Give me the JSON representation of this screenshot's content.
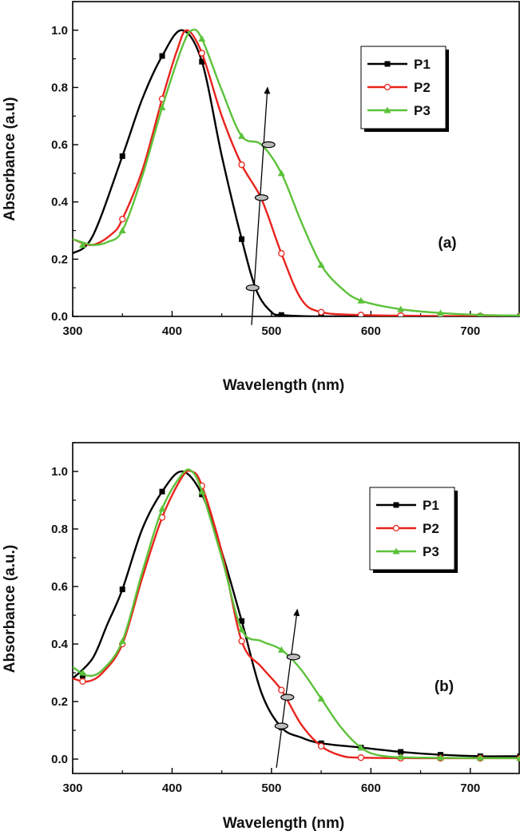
{
  "colors": {
    "P1": "#000000",
    "P2": "#e8231c",
    "P3": "#5cc23a"
  },
  "chart_data": [
    {
      "type": "line",
      "panel_label": "(a)",
      "xlabel": "Wavelength (nm)",
      "ylabel": "Absorbance (a.u)",
      "xlim": [
        300,
        750
      ],
      "ylim": [
        0,
        1.1
      ],
      "xticks": [
        300,
        400,
        500,
        600,
        700
      ],
      "yticks": [
        0.0,
        0.2,
        0.4,
        0.6,
        0.8,
        1.0
      ],
      "ytick_labels": [
        "0.0",
        "0.2",
        "0.4",
        "0.6",
        "0.8",
        "1.0"
      ],
      "legend": {
        "position": "top-right"
      },
      "series": [
        {
          "name": "P1",
          "marker": "square",
          "x": [
            300,
            320,
            350,
            370,
            390,
            410,
            430,
            450,
            470,
            485,
            500,
            510,
            530,
            550,
            600,
            650,
            700,
            750
          ],
          "y": [
            0.22,
            0.28,
            0.56,
            0.76,
            0.91,
            1.0,
            0.89,
            0.56,
            0.27,
            0.09,
            0.015,
            0.005,
            0.001,
            0.0,
            0.0,
            0.0,
            0.0,
            0.0
          ],
          "mx": [
            350,
            390,
            430,
            470,
            510,
            550,
            590,
            630,
            670,
            710,
            750
          ],
          "my": [
            0.56,
            0.91,
            0.89,
            0.27,
            0.005,
            0.0,
            0.0,
            0.0,
            0.0,
            0.0,
            0.0
          ]
        },
        {
          "name": "P2",
          "marker": "open-circle",
          "x": [
            300,
            320,
            340,
            350,
            370,
            390,
            405,
            415,
            430,
            450,
            470,
            490,
            510,
            530,
            550,
            590,
            650,
            700,
            750
          ],
          "y": [
            0.27,
            0.25,
            0.29,
            0.34,
            0.51,
            0.76,
            0.93,
            1.0,
            0.92,
            0.7,
            0.53,
            0.41,
            0.22,
            0.06,
            0.015,
            0.005,
            0.002,
            0.001,
            0.0
          ],
          "mx": [
            350,
            390,
            430,
            470,
            510,
            550,
            590,
            630,
            670,
            710,
            750
          ],
          "my": [
            0.34,
            0.76,
            0.92,
            0.53,
            0.22,
            0.015,
            0.005,
            0.003,
            0.002,
            0.001,
            0.0
          ]
        },
        {
          "name": "P3",
          "marker": "triangle",
          "x": [
            300,
            320,
            335,
            350,
            370,
            390,
            410,
            420,
            430,
            450,
            470,
            490,
            510,
            530,
            550,
            570,
            590,
            630,
            670,
            710,
            750
          ],
          "y": [
            0.27,
            0.25,
            0.26,
            0.3,
            0.49,
            0.73,
            0.94,
            1.0,
            0.97,
            0.79,
            0.63,
            0.6,
            0.5,
            0.33,
            0.18,
            0.1,
            0.055,
            0.025,
            0.012,
            0.005,
            0.003
          ],
          "mx": [
            310,
            350,
            390,
            430,
            470,
            510,
            550,
            590,
            630,
            670,
            710,
            750
          ],
          "my": [
            0.25,
            0.3,
            0.73,
            0.97,
            0.63,
            0.5,
            0.18,
            0.055,
            0.025,
            0.012,
            0.005,
            0.003
          ]
        }
      ],
      "annotation": {
        "arrow_from": [
          480,
          -0.03
        ],
        "arrow_to": [
          496,
          0.8
        ],
        "ellipses": [
          [
            481,
            0.1
          ],
          [
            490,
            0.415
          ],
          [
            497,
            0.6
          ]
        ]
      }
    },
    {
      "type": "line",
      "panel_label": "(b)",
      "xlabel": "Wavelength (nm)",
      "ylabel": "Absorbance (a.u.)",
      "xlim": [
        300,
        750
      ],
      "ylim": [
        -0.05,
        1.1
      ],
      "xticks": [
        300,
        400,
        500,
        600,
        700
      ],
      "yticks": [
        0.0,
        0.2,
        0.4,
        0.6,
        0.8,
        1.0
      ],
      "ytick_labels": [
        "0.0",
        "0.2",
        "0.4",
        "0.6",
        "0.8",
        "1.0"
      ],
      "legend": {
        "position": "top-right"
      },
      "series": [
        {
          "name": "P1",
          "marker": "square",
          "x": [
            300,
            320,
            335,
            350,
            370,
            390,
            410,
            430,
            450,
            470,
            490,
            510,
            530,
            550,
            590,
            630,
            670,
            710,
            750
          ],
          "y": [
            0.28,
            0.35,
            0.47,
            0.59,
            0.8,
            0.93,
            1.0,
            0.92,
            0.72,
            0.48,
            0.23,
            0.11,
            0.075,
            0.055,
            0.04,
            0.025,
            0.015,
            0.01,
            0.01
          ],
          "mx": [
            310,
            350,
            390,
            430,
            470,
            510,
            550,
            590,
            630,
            670,
            710,
            750
          ],
          "my": [
            0.29,
            0.59,
            0.93,
            0.92,
            0.48,
            0.11,
            0.055,
            0.04,
            0.025,
            0.015,
            0.01,
            0.01
          ]
        },
        {
          "name": "P2",
          "marker": "open-circle",
          "x": [
            300,
            315,
            330,
            350,
            370,
            390,
            410,
            420,
            430,
            450,
            470,
            490,
            510,
            530,
            550,
            570,
            590,
            650,
            750
          ],
          "y": [
            0.28,
            0.27,
            0.3,
            0.4,
            0.63,
            0.84,
            0.98,
            1.0,
            0.95,
            0.72,
            0.41,
            0.32,
            0.24,
            0.12,
            0.045,
            0.012,
            0.005,
            0.003,
            0.003
          ],
          "mx": [
            310,
            350,
            390,
            430,
            470,
            510,
            550,
            590,
            630,
            670,
            710,
            750
          ],
          "my": [
            0.27,
            0.4,
            0.84,
            0.95,
            0.41,
            0.24,
            0.045,
            0.005,
            0.003,
            0.003,
            0.003,
            0.003
          ]
        },
        {
          "name": "P3",
          "marker": "triangle",
          "x": [
            300,
            315,
            330,
            350,
            370,
            390,
            410,
            420,
            430,
            450,
            470,
            490,
            510,
            530,
            550,
            570,
            590,
            610,
            650,
            750
          ],
          "y": [
            0.32,
            0.29,
            0.31,
            0.41,
            0.65,
            0.87,
            0.99,
            1.0,
            0.93,
            0.7,
            0.45,
            0.41,
            0.38,
            0.31,
            0.21,
            0.11,
            0.04,
            0.012,
            0.005,
            0.003
          ],
          "mx": [
            310,
            350,
            390,
            430,
            470,
            510,
            550,
            590,
            630,
            670,
            710,
            750
          ],
          "my": [
            0.3,
            0.41,
            0.87,
            0.93,
            0.45,
            0.38,
            0.21,
            0.04,
            0.008,
            0.005,
            0.004,
            0.003
          ]
        }
      ],
      "annotation": {
        "arrow_from": [
          505,
          -0.03
        ],
        "arrow_to": [
          526,
          0.52
        ],
        "ellipses": [
          [
            510,
            0.115
          ],
          [
            516,
            0.215
          ],
          [
            522,
            0.355
          ]
        ]
      }
    }
  ]
}
